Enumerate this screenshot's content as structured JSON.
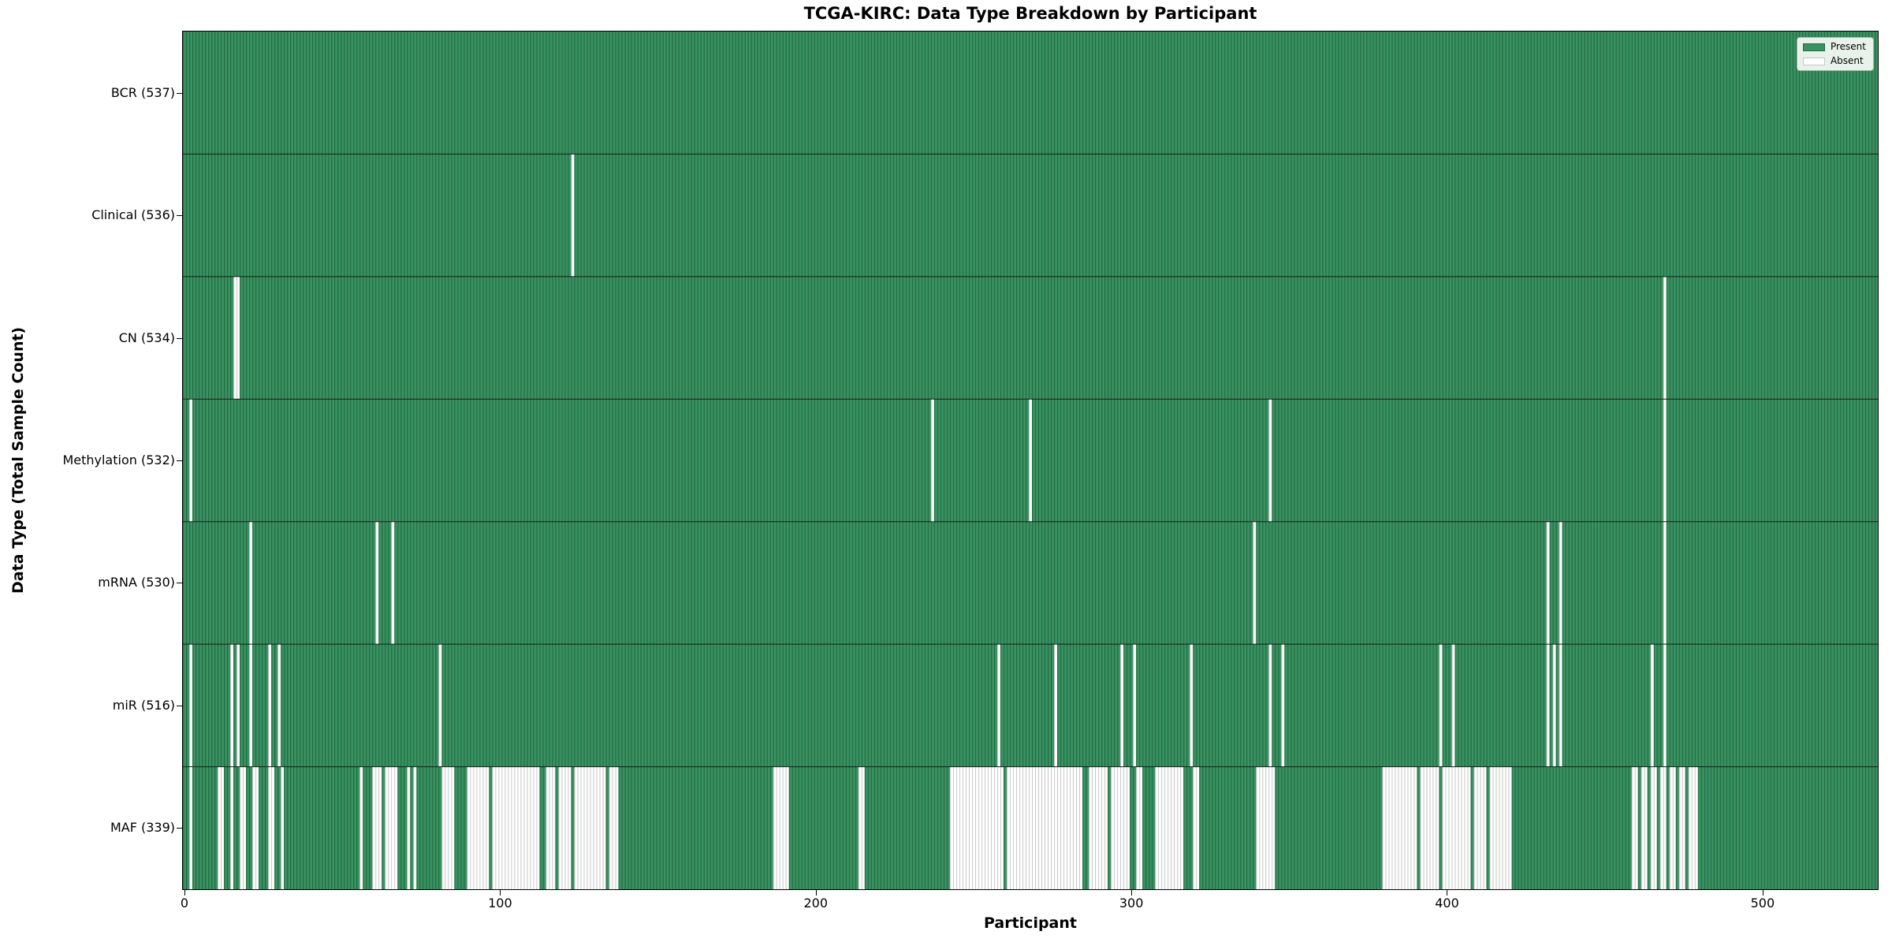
{
  "chart_data": {
    "type": "heatmap",
    "title": "TCGA-KIRC: Data Type Breakdown by Participant",
    "xlabel": "Participant",
    "ylabel": "Data Type (Total Sample Count)",
    "n_participants": 537,
    "x_ticks": [
      "0",
      "100",
      "200",
      "300",
      "400",
      "500"
    ],
    "legend": [
      {
        "label": "Present",
        "value": "present"
      },
      {
        "label": "Absent",
        "value": "absent"
      }
    ],
    "colors": {
      "present_fill": "#3A9161",
      "present_edge": "#1E6B40",
      "absent_fill": "#FFFFFF",
      "absent_edge": "#C7C7C7",
      "row_divider": "#1a1a1a",
      "legend_bg": "#e9f2ea"
    },
    "rows": [
      {
        "label": "BCR (537)",
        "data_type": "BCR",
        "present_count": 537,
        "absent_count": 0,
        "absent": []
      },
      {
        "label": "Clinical (536)",
        "data_type": "Clinical",
        "present_count": 536,
        "absent_count": 1,
        "absent": [
          [
            123,
            123
          ]
        ]
      },
      {
        "label": "CN (534)",
        "data_type": "CN",
        "present_count": 534,
        "absent_count": 3,
        "absent": [
          [
            16,
            17
          ],
          [
            469,
            469
          ]
        ]
      },
      {
        "label": "Methylation (532)",
        "data_type": "Methylation",
        "present_count": 532,
        "absent_count": 5,
        "absent": [
          [
            2,
            2
          ],
          [
            237,
            237
          ],
          [
            268,
            268
          ],
          [
            344,
            344
          ],
          [
            469,
            469
          ]
        ]
      },
      {
        "label": "mRNA (530)",
        "data_type": "mRNA",
        "present_count": 530,
        "absent_count": 7,
        "absent": [
          [
            21,
            21
          ],
          [
            61,
            61
          ],
          [
            66,
            66
          ],
          [
            339,
            339
          ],
          [
            432,
            432
          ],
          [
            436,
            436
          ],
          [
            469,
            469
          ]
        ]
      },
      {
        "label": "miR (516)",
        "data_type": "miR",
        "present_count": 516,
        "absent_count": 21,
        "absent": [
          [
            2,
            2
          ],
          [
            15,
            15
          ],
          [
            17,
            17
          ],
          [
            21,
            21
          ],
          [
            27,
            27
          ],
          [
            30,
            30
          ],
          [
            81,
            81
          ],
          [
            258,
            258
          ],
          [
            276,
            276
          ],
          [
            297,
            297
          ],
          [
            301,
            301
          ],
          [
            319,
            319
          ],
          [
            344,
            344
          ],
          [
            348,
            348
          ],
          [
            398,
            398
          ],
          [
            402,
            402
          ],
          [
            432,
            432
          ],
          [
            434,
            434
          ],
          [
            436,
            436
          ],
          [
            465,
            465
          ],
          [
            469,
            469
          ]
        ]
      },
      {
        "label": "MAF (339)",
        "data_type": "MAF",
        "present_count": 339,
        "absent_count": 198,
        "absent": [
          [
            2,
            2
          ],
          [
            11,
            12
          ],
          [
            15,
            15
          ],
          [
            18,
            19
          ],
          [
            22,
            23
          ],
          [
            27,
            28
          ],
          [
            31,
            31
          ],
          [
            56,
            56
          ],
          [
            60,
            62
          ],
          [
            64,
            67
          ],
          [
            71,
            71
          ],
          [
            73,
            73
          ],
          [
            82,
            85
          ],
          [
            90,
            96
          ],
          [
            98,
            112
          ],
          [
            115,
            117
          ],
          [
            119,
            122
          ],
          [
            124,
            133
          ],
          [
            135,
            137
          ],
          [
            187,
            191
          ],
          [
            214,
            215
          ],
          [
            243,
            259
          ],
          [
            261,
            284
          ],
          [
            287,
            292
          ],
          [
            294,
            299
          ],
          [
            302,
            303
          ],
          [
            308,
            316
          ],
          [
            320,
            321
          ],
          [
            340,
            345
          ],
          [
            380,
            390
          ],
          [
            392,
            397
          ],
          [
            399,
            407
          ],
          [
            409,
            412
          ],
          [
            414,
            420
          ],
          [
            459,
            460
          ],
          [
            462,
            463
          ],
          [
            465,
            466
          ],
          [
            468,
            469
          ],
          [
            471,
            472
          ],
          [
            474,
            475
          ],
          [
            477,
            479
          ]
        ]
      }
    ]
  }
}
